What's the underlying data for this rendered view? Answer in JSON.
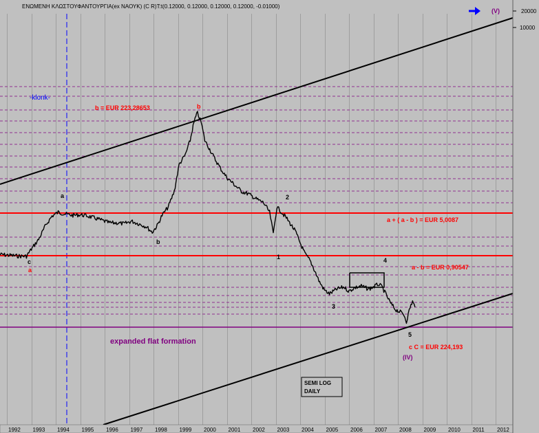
{
  "chart_data": {
    "type": "line",
    "scale": "semi-log",
    "title": "ΕΝΩΜΕΝΗ ΚΛΩΣΤΟΥΦΑΝΤΟΥΡΓΙΑ(ex ΝΑΟΥΚ) (C R)T:t(0.12000, 0.12000, 0.12000, 0.12000, -0.01000)",
    "x_tick_labels": [
      "1992",
      "1993",
      "1994",
      "1995",
      "1996",
      "1997",
      "1998",
      "1999",
      "2000",
      "2001",
      "2002",
      "2003",
      "2004",
      "2005",
      "2006",
      "2007",
      "2008",
      "2009",
      "2010",
      "2011",
      "2012"
    ],
    "y_tick_labels": [
      "20000",
      "10000"
    ],
    "horizontal_levels": [
      {
        "label": "b = EUR 223,28653",
        "color": "#ff0000"
      },
      {
        "label": "a + ( a - b ) = EUR 5,0087",
        "color": "#ff0000"
      },
      {
        "label": "a - b = EUR 0,90547",
        "color": "#ff0000"
      },
      {
        "label": "c  C = EUR 224,193",
        "color": "#ff0000"
      }
    ],
    "wave_labels": [
      "a",
      "b",
      "c",
      "a",
      "b",
      "1",
      "2",
      "3",
      "4",
      "5",
      "(IV)",
      "(V)"
    ],
    "annotations": {
      "klonk": "-klonk-",
      "formation": "expanded flat formation",
      "scale_note_line1": "SEMI LOG",
      "scale_note_line2": "DAILY"
    },
    "series": [
      {
        "x": [
          1991.7,
          1992.0,
          1992.4,
          1992.8,
          1993.0,
          1993.3,
          1993.6,
          1993.85,
          1994.1,
          1994.4,
          1994.7,
          1995.0,
          1995.3,
          1995.6,
          1995.9,
          1996.2,
          1996.5,
          1996.8,
          1997.1,
          1997.4,
          1997.7,
          1997.95,
          1998.15,
          1998.35,
          1998.6,
          1998.85,
          1999.05,
          1999.3,
          1999.5,
          1999.62,
          1999.7,
          1999.8,
          1999.95,
          2000.1,
          2000.3,
          2000.5,
          2000.8,
          2001.0,
          2001.3,
          2001.6,
          2001.9,
          2002.2,
          2002.5,
          2002.75,
          2002.9,
          2003.05,
          2003.2,
          2003.4,
          2003.6,
          2003.8,
          2004.0,
          2004.2,
          2004.4,
          2004.6,
          2004.8,
          2005.0,
          2005.2,
          2005.5,
          2005.8,
          2006.0,
          2006.2,
          2006.5,
          2006.8,
          2007.0,
          2007.2,
          2007.35,
          2007.5,
          2007.7,
          2007.9,
          2008.1,
          2008.25,
          2008.35,
          2008.5,
          2008.6,
          2008.7
        ],
        "y": [
          0.9,
          0.88,
          0.85,
          0.84,
          1.1,
          1.6,
          2.8,
          3.9,
          4.5,
          4.2,
          4.0,
          4.1,
          3.9,
          3.6,
          3.3,
          3.0,
          3.0,
          2.9,
          3.2,
          2.9,
          2.6,
          2.1,
          2.7,
          4.0,
          5.5,
          10,
          28,
          40,
          70,
          120,
          160,
          200,
          140,
          70,
          50,
          35,
          22,
          17,
          13,
          10,
          9,
          7.5,
          6.5,
          4.5,
          2.0,
          5.5,
          4.7,
          3.8,
          2.9,
          2.2,
          1.4,
          0.92,
          0.72,
          0.48,
          0.31,
          0.23,
          0.2,
          0.24,
          0.26,
          0.22,
          0.25,
          0.27,
          0.24,
          0.26,
          0.29,
          0.26,
          0.2,
          0.14,
          0.11,
          0.1,
          0.09,
          0.07,
          0.12,
          0.15,
          0.12
        ]
      }
    ]
  }
}
